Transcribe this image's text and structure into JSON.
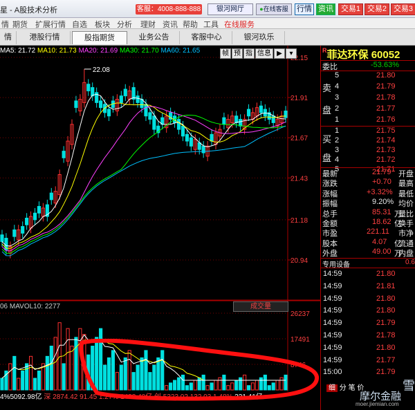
{
  "title_bar": {
    "app_title": "星 - A股技术分析",
    "hotline": "客服：4008-888-888",
    "net_hall": "银河网厅",
    "online_client": "在线客服",
    "quote_btn": "行情",
    "info_btn": "资讯",
    "trade_buttons": [
      "交易1",
      "交易2",
      "交易3"
    ]
  },
  "menu": [
    "情",
    "期货",
    "扩展行情",
    "自选",
    "板块",
    "分析",
    "理财",
    "资讯",
    "帮助",
    "工具",
    "在线服务"
  ],
  "tabs": [
    "情",
    "港股行情",
    "股指期货",
    "业务公告",
    "客服中心",
    "银河玖乐"
  ],
  "ma_legend": [
    {
      "label": "MA5: 21.72",
      "color": "#ffffff"
    },
    {
      "label": "MA10: 21.73",
      "color": "#ffff00"
    },
    {
      "label": "MA20: 21.69",
      "color": "#ff40ff"
    },
    {
      "label": "MA30: 21.70",
      "color": "#00ff00"
    },
    {
      "label": "MA60: 21.65",
      "color": "#00c0ff"
    }
  ],
  "chart_tools": [
    "帧",
    "预",
    "指",
    "信息"
  ],
  "price_axis": [
    "22.15",
    "21.91",
    "21.67",
    "21.43",
    "21.18",
    "20.94"
  ],
  "volume_axis": [
    "26237",
    "17491",
    "8746"
  ],
  "high_annotation": "22.08",
  "vol_legend": "06 MAVOL10: 2277",
  "vol_dropdown": "成交量",
  "footer": {
    "left": "4%5092.98亿",
    "shen": "深 2874.42",
    "right": "321.41亿",
    "fragments": "91.45  1.27%  1488.40亿 创",
    "fragments2": "5323.02  132.03  1.48%"
  },
  "stock": {
    "name": "菲达环保",
    "code": "60052",
    "weibi_label": "委比",
    "weibi": "-53.63%",
    "sell_label": [
      "卖",
      "盘"
    ],
    "buy_label": [
      "买",
      "盘"
    ],
    "sell": [
      {
        "n": "5",
        "p": "21.80"
      },
      {
        "n": "4",
        "p": "21.79"
      },
      {
        "n": "3",
        "p": "21.78"
      },
      {
        "n": "2",
        "p": "21.77"
      },
      {
        "n": "1",
        "p": "21.76"
      }
    ],
    "buy": [
      {
        "n": "1",
        "p": "21.75"
      },
      {
        "n": "2",
        "p": "21.74"
      },
      {
        "n": "3",
        "p": "21.73"
      },
      {
        "n": "4",
        "p": "21.72"
      },
      {
        "n": "5",
        "p": "21.71"
      }
    ],
    "stats": [
      {
        "k": "最新",
        "v": "21.79",
        "u": "",
        "k2": "开盘"
      },
      {
        "k": "涨跌",
        "v": "+0.70",
        "u": "",
        "k2": "最高"
      },
      {
        "k": "涨幅",
        "v": "+3.32%",
        "u": "",
        "k2": "最低"
      },
      {
        "k": "振幅",
        "v": "9.20%",
        "u": "",
        "k2": "均价"
      },
      {
        "k": "总手",
        "v": "85.31",
        "u": "万",
        "k2": "量比"
      },
      {
        "k": "金额",
        "v": "18.62",
        "u": "亿",
        "k2": "换手"
      },
      {
        "k": "市盈",
        "v": "221.11",
        "u": "",
        "k2": "市净"
      },
      {
        "k": "股本",
        "v": "4.07",
        "u": "亿",
        "k2": "流通"
      },
      {
        "k": "外盘",
        "v": "49.00",
        "u": "万",
        "k2": "内盘"
      }
    ],
    "device_label": "专用设备",
    "device_val": "0.6",
    "trades": [
      {
        "t": "14:59",
        "p": "21.80"
      },
      {
        "t": "14:59",
        "p": "21.81"
      },
      {
        "t": "14:59",
        "p": "21.80"
      },
      {
        "t": "14:59",
        "p": "21.80"
      },
      {
        "t": "14:59",
        "p": "21.79"
      },
      {
        "t": "14:59",
        "p": "21.78"
      },
      {
        "t": "14:59",
        "p": "21.80"
      },
      {
        "t": "14:59",
        "p": "21.77"
      },
      {
        "t": "15:00",
        "p": "21.79"
      }
    ],
    "bottom_tabs": [
      "细",
      "分",
      "笔",
      "价"
    ],
    "watermark": "雪球",
    "watermark2": "摩尔金融",
    "watermark_url": "moer.jiemian.com"
  },
  "colors": {
    "up": "#ff3030",
    "down": "#00e0e0",
    "accent": "#ff4040"
  }
}
